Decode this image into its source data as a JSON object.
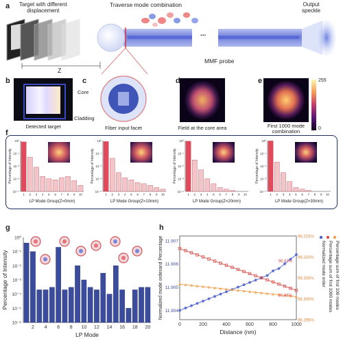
{
  "panel_a": {
    "label": "a",
    "target_caption": "Target with different\ndisplacement",
    "mode_caption": "Traverse mode combination",
    "speckle_caption": "Output\nspeckle",
    "probe_label": "MMF probe",
    "ellipsis": "...",
    "z_label": "Z"
  },
  "panel_b": {
    "label": "b",
    "caption": "Detected target"
  },
  "panel_c": {
    "label": "c",
    "core_label": "Core",
    "cladding_label": "Cladding",
    "caption": "Fiber input facet"
  },
  "panel_d": {
    "label": "d",
    "caption": "Field at the core area"
  },
  "panel_e": {
    "label": "e",
    "caption": "First 1000 mode\ncombination",
    "colorbar_max": "255",
    "colorbar_min": "0"
  },
  "panel_f": {
    "label": "f",
    "ylabel": "Percentage of Intensity",
    "ticks_y": [
      "10⁰",
      "10⁻¹",
      "10⁻²",
      "10⁻³",
      "10⁻⁴"
    ],
    "ticks_x": [
      "1",
      "2",
      "3",
      "4",
      "5",
      "6",
      "7",
      "8",
      "9",
      "10"
    ],
    "xlabels": [
      "LP Mode Group(Z=0mm)",
      "LP Mode Group(Z=10mm)",
      "LP Mode Group(Z=20mm)",
      "LP Mode Group(Z=30mm)"
    ]
  },
  "panel_g": {
    "label": "g",
    "ylabel": "Percentage of Intensity",
    "xlabel": "LP Mode",
    "ticks_y": [
      "10⁰",
      "10⁻¹",
      "10⁻²",
      "10⁻³",
      "10⁻⁴",
      "10⁻⁵",
      "10⁻⁶"
    ],
    "ticks_x": [
      "2",
      "4",
      "6",
      "8",
      "10",
      "12",
      "14",
      "16",
      "18",
      "20"
    ]
  },
  "panel_h": {
    "label": "h",
    "xlabel": "Distance (nm)",
    "ylabel_left": "Normalized mode orderand Percentage",
    "ylabel_right": "Percentage sum of first 100 modes",
    "ticks_x": [
      "0",
      "200",
      "400",
      "600",
      "800",
      "1000"
    ],
    "ticks_left": [
      "11.907",
      "11.906",
      "11.905",
      "11.904"
    ],
    "ticks_right": [
      "96.315%",
      "96.310%",
      "96.305%",
      "96.300%",
      "96.295%"
    ],
    "ann_1": "96.87%",
    "ann_2": "96.86%",
    "legend": [
      "Normalized mode order",
      "Percentage sum of first 1000 modes",
      "Percentage sum of first 100 modes"
    ]
  },
  "chart_data": [
    {
      "type": "bar",
      "id": "f1",
      "categories": [
        "1",
        "2",
        "3",
        "4",
        "5",
        "6",
        "7",
        "8",
        "9",
        "10"
      ],
      "values": [
        0.8,
        0.05,
        0.008,
        0.0015,
        0.001,
        0.0008,
        0.0012,
        0.0015,
        0.0007,
        0.0003
      ],
      "ylim": [
        0.0001,
        1
      ],
      "log_y": true
    },
    {
      "type": "bar",
      "id": "f2",
      "categories": [
        "1",
        "2",
        "3",
        "4",
        "5",
        "6",
        "7",
        "8",
        "9",
        "10"
      ],
      "values": [
        0.85,
        0.04,
        0.003,
        0.0012,
        0.0008,
        0.0005,
        0.0004,
        0.0003,
        0.0002,
        0.00015
      ],
      "ylim": [
        0.0001,
        1
      ],
      "log_y": true
    },
    {
      "type": "bar",
      "id": "f3",
      "categories": [
        "1",
        "2",
        "3",
        "4",
        "5",
        "6",
        "7",
        "8",
        "9",
        "10"
      ],
      "values": [
        0.9,
        0.03,
        0.005,
        0.001,
        0.0004,
        0.0002,
        0.00015,
        0.00012,
        0.0001,
        0.0001
      ],
      "ylim": [
        0.0001,
        1
      ],
      "log_y": true
    },
    {
      "type": "bar",
      "id": "f4",
      "categories": [
        "1",
        "2",
        "3",
        "4",
        "5",
        "6",
        "7",
        "8",
        "9",
        "10"
      ],
      "values": [
        0.95,
        0.02,
        0.003,
        0.0006,
        0.0002,
        0.00015,
        0.00012,
        0.0001,
        0.0001,
        0.0001
      ],
      "ylim": [
        0.0001,
        1
      ],
      "log_y": true
    },
    {
      "type": "bar",
      "id": "g",
      "categories": [
        "1",
        "2",
        "3",
        "4",
        "5",
        "6",
        "7",
        "8",
        "9",
        "10",
        "11",
        "12",
        "13",
        "14",
        "15",
        "16",
        "17",
        "18",
        "19",
        "20"
      ],
      "values": [
        0.4,
        0.1,
        0.0002,
        0.0002,
        0.0003,
        0.2,
        0.0002,
        0.0003,
        0.01,
        0.001,
        0.0003,
        0.0002,
        0.003,
        0.0001,
        0.01,
        0.0002,
        1e-05,
        0.0002,
        0.0003,
        0.0003
      ],
      "ylim": [
        1e-06,
        1
      ],
      "log_y": true
    },
    {
      "type": "line",
      "id": "h",
      "x": [
        0,
        50,
        100,
        150,
        200,
        250,
        300,
        350,
        400,
        450,
        500,
        550,
        600,
        650,
        700,
        750,
        800,
        850,
        900,
        950,
        1000
      ],
      "series": [
        {
          "name": "Normalized mode order",
          "axis": "left",
          "color": "#4a5fd0",
          "values": [
            11.904,
            11.9041,
            11.9042,
            11.9043,
            11.9044,
            11.9045,
            11.9046,
            11.9047,
            11.9048,
            11.9049,
            11.905,
            11.9051,
            11.9052,
            11.9053,
            11.9054,
            11.9055,
            11.9057,
            11.9058,
            11.906,
            11.9062,
            11.9064
          ]
        },
        {
          "name": "Percentage sum of first 1000 modes",
          "axis": "right",
          "color": "#d9534f",
          "values": [
            96.312,
            96.3115,
            96.311,
            96.3105,
            96.31,
            96.3095,
            96.309,
            96.3085,
            96.308,
            96.3075,
            96.307,
            96.3065,
            96.306,
            96.3055,
            96.305,
            96.3045,
            96.304,
            96.3035,
            96.303,
            96.3025,
            96.302
          ]
        },
        {
          "name": "Percentage sum of first 100 modes",
          "axis": "right",
          "color": "#f0a050",
          "values": [
            96.3035,
            96.30335,
            96.3032,
            96.30305,
            96.3029,
            96.30275,
            96.3026,
            96.30245,
            96.3023,
            96.30215,
            96.302,
            96.30185,
            96.3017,
            96.30155,
            96.3014,
            96.30125,
            96.3011,
            96.30095,
            96.3008,
            96.30065,
            96.3005
          ]
        }
      ],
      "xlim": [
        0,
        1000
      ],
      "ylim_left": [
        11.9036,
        11.9072
      ],
      "ylim_right": [
        96.295,
        96.315
      ]
    }
  ]
}
